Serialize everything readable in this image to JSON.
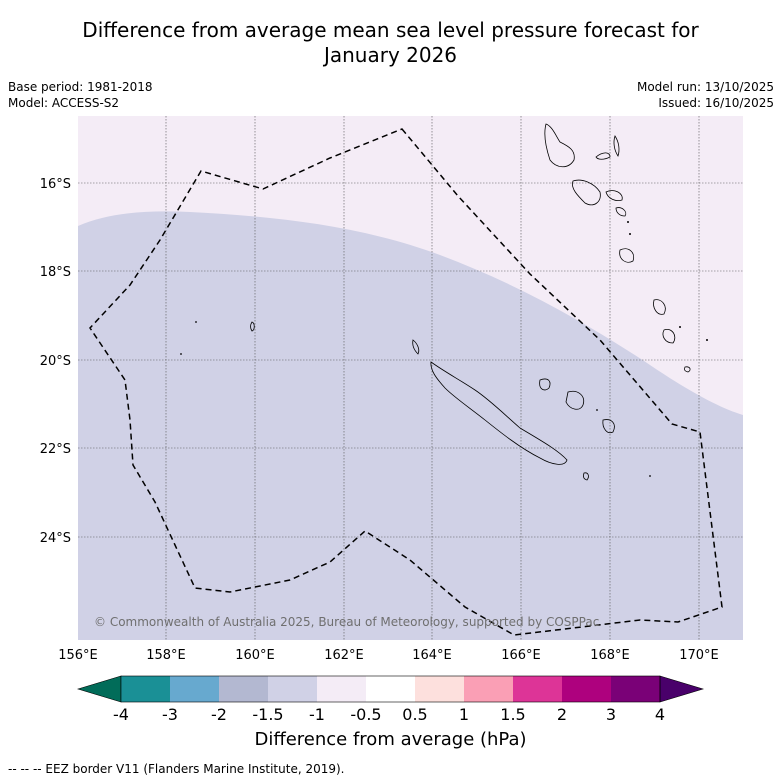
{
  "title": {
    "line1": "Difference from average mean sea level pressure forecast for",
    "line2": "January 2026"
  },
  "meta": {
    "base_period": "Base period: 1981-2018",
    "model": "Model: ACCESS-S2",
    "model_run": "Model run: 13/10/2025",
    "issued": "Issued: 16/10/2025"
  },
  "map": {
    "lon_labels": [
      "156°E",
      "158°E",
      "160°E",
      "162°E",
      "164°E",
      "166°E",
      "168°E",
      "170°E"
    ],
    "lat_labels": [
      "16°S",
      "18°S",
      "20°S",
      "22°S",
      "24°S"
    ],
    "copyright": "© Commonwealth of Australia 2025, Bureau of Meteorology, supported by COSPPac",
    "regions": [
      {
        "category": "-1 to -0.5",
        "color": "#f4ecf6"
      },
      {
        "category": "-1.5 to -1",
        "color": "#d0d1e6"
      }
    ]
  },
  "colorbar": {
    "labels": [
      "-4",
      "-3",
      "-2",
      "-1.5",
      "-1",
      "-0.5",
      "0.5",
      "1",
      "1.5",
      "2",
      "3",
      "4"
    ],
    "colors": [
      "#1a9096",
      "#67a9cf",
      "#b3b8d1",
      "#d0d1e6",
      "#f4ecf6",
      "#ffffff",
      "#fde0dd",
      "#fa9fb5",
      "#dd3497",
      "#ae017e",
      "#7a0177"
    ],
    "low_extend_color": "#016c59",
    "high_extend_color": "#49006a",
    "title": "Difference from average (hPa)"
  },
  "footer": "--  --  -- EEZ border V11 (Flanders Marine Institute, 2019)."
}
